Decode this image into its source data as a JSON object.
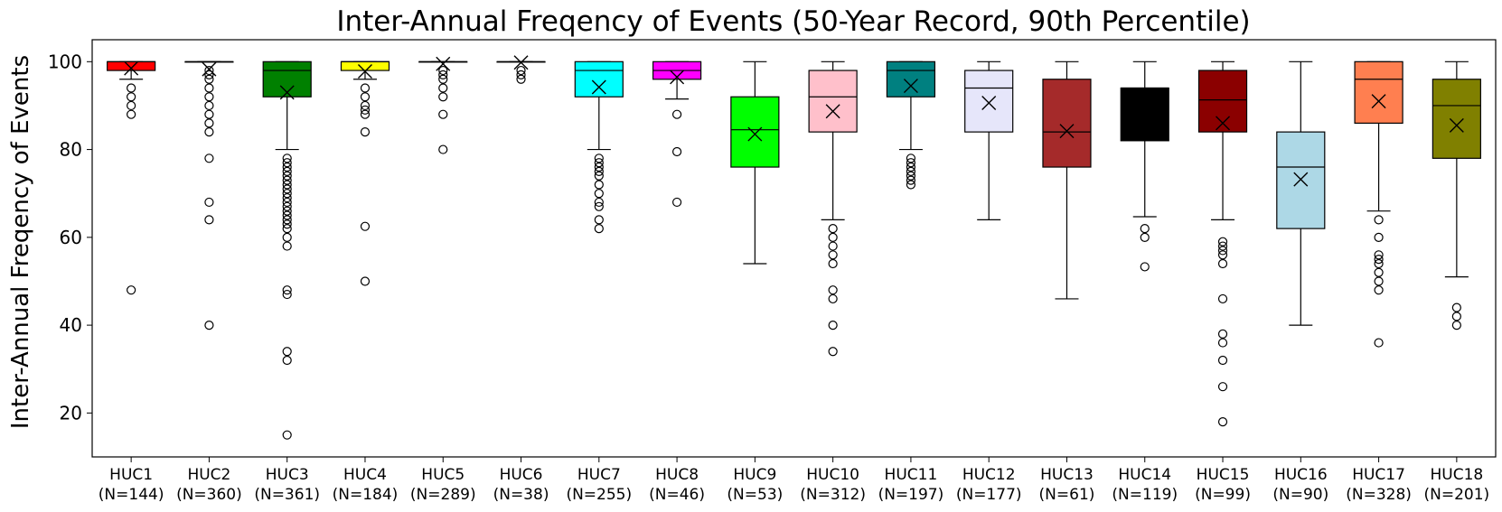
{
  "chart_data": {
    "type": "box",
    "title": "Inter-Annual Freqency of Events (50-Year Record, 90th Percentile)",
    "xlabel": "",
    "ylabel": "Inter-Annual Freqency of Events",
    "ylim": [
      10,
      105
    ],
    "yticks": [
      20,
      40,
      60,
      80,
      100
    ],
    "grid": false,
    "mean_marker": "x",
    "categories": [
      {
        "name": "HUC1",
        "n_label": "(N=144)",
        "color": "#ff0000",
        "q1": 98,
        "median": 100,
        "q3": 100,
        "whisker_low": 96,
        "whisker_high": 100,
        "mean": 98.5,
        "outliers": [
          94,
          92,
          90,
          88,
          48
        ]
      },
      {
        "name": "HUC2",
        "n_label": "(N=360)",
        "color": "#0000ff",
        "q1": 100,
        "median": 100,
        "q3": 100,
        "whisker_low": 100,
        "whisker_high": 100,
        "mean": 98.3,
        "outliers": [
          98,
          97,
          96,
          94,
          92,
          90,
          88,
          86,
          84,
          78,
          68,
          64,
          40
        ]
      },
      {
        "name": "HUC3",
        "n_label": "(N=361)",
        "color": "#008000",
        "q1": 92,
        "median": 98,
        "q3": 100,
        "whisker_low": 80,
        "whisker_high": 100,
        "mean": 93,
        "outliers": [
          78,
          77,
          76,
          75,
          74,
          73,
          72,
          71,
          70,
          69,
          68,
          67,
          66,
          65,
          64,
          63,
          62,
          60,
          58,
          48,
          47,
          34,
          32,
          15
        ]
      },
      {
        "name": "HUC4",
        "n_label": "(N=184)",
        "color": "#ffff00",
        "q1": 98,
        "median": 100,
        "q3": 100,
        "whisker_low": 96,
        "whisker_high": 100,
        "mean": 97.8,
        "outliers": [
          94,
          92,
          90,
          89,
          88,
          84,
          62.5,
          50
        ]
      },
      {
        "name": "HUC5",
        "n_label": "(N=289)",
        "color": "#ffffff",
        "q1": 100,
        "median": 100,
        "q3": 100,
        "whisker_low": 100,
        "whisker_high": 100,
        "mean": 99.5,
        "outliers": [
          98,
          97,
          96,
          94,
          92,
          88,
          80
        ]
      },
      {
        "name": "HUC6",
        "n_label": "(N=38)",
        "color": "#ffffff",
        "q1": 100,
        "median": 100,
        "q3": 100,
        "whisker_low": 100,
        "whisker_high": 100,
        "mean": 99.8,
        "outliers": [
          98,
          97,
          96
        ]
      },
      {
        "name": "HUC7",
        "n_label": "(N=255)",
        "color": "#00ffff",
        "q1": 92,
        "median": 98,
        "q3": 100,
        "whisker_low": 80,
        "whisker_high": 100,
        "mean": 94.2,
        "outliers": [
          78,
          77,
          76,
          75,
          74,
          72,
          70,
          68,
          67,
          64,
          62
        ]
      },
      {
        "name": "HUC8",
        "n_label": "(N=46)",
        "color": "#ff00ff",
        "q1": 96,
        "median": 98,
        "q3": 100,
        "whisker_low": 91.5,
        "whisker_high": 100,
        "mean": 96.5,
        "outliers": [
          88,
          79.5,
          68
        ]
      },
      {
        "name": "HUC9",
        "n_label": "(N=53)",
        "color": "#00ff00",
        "q1": 76,
        "median": 84.5,
        "q3": 92,
        "whisker_low": 54,
        "whisker_high": 100,
        "mean": 83.5,
        "outliers": []
      },
      {
        "name": "HUC10",
        "n_label": "(N=312)",
        "color": "#ffc0cb",
        "q1": 84,
        "median": 92,
        "q3": 98,
        "whisker_low": 64,
        "whisker_high": 100,
        "mean": 88.7,
        "outliers": [
          62,
          60,
          58,
          56,
          54,
          48,
          46,
          40,
          34
        ]
      },
      {
        "name": "HUC11",
        "n_label": "(N=197)",
        "color": "#008080",
        "q1": 92,
        "median": 98,
        "q3": 100,
        "whisker_low": 80,
        "whisker_high": 100,
        "mean": 94.5,
        "outliers": [
          78,
          77,
          76,
          75,
          74,
          73,
          72
        ]
      },
      {
        "name": "HUC12",
        "n_label": "(N=177)",
        "color": "#e6e6fa",
        "q1": 84,
        "median": 94,
        "q3": 98,
        "whisker_low": 64,
        "whisker_high": 100,
        "mean": 90.6,
        "outliers": []
      },
      {
        "name": "HUC13",
        "n_label": "(N=61)",
        "color": "#a52a2a",
        "q1": 76,
        "median": 84,
        "q3": 96,
        "whisker_low": 46,
        "whisker_high": 100,
        "mean": 84.2,
        "outliers": []
      },
      {
        "name": "HUC14",
        "n_label": "(N=119)",
        "color": "#000000",
        "q1": 82,
        "median": 94,
        "q3": 94,
        "whisker_low": 64.7,
        "whisker_high": 100,
        "mean": 87,
        "outliers": [
          62,
          60,
          53.3
        ]
      },
      {
        "name": "HUC15",
        "n_label": "(N=99)",
        "color": "#8b0000",
        "q1": 84,
        "median": 91.3,
        "q3": 98,
        "whisker_low": 64,
        "whisker_high": 100,
        "mean": 86,
        "outliers": [
          59,
          58,
          57,
          56,
          54,
          46,
          38,
          36,
          32,
          26,
          18
        ]
      },
      {
        "name": "HUC16",
        "n_label": "(N=90)",
        "color": "#add8e6",
        "q1": 62,
        "median": 76,
        "q3": 84,
        "whisker_low": 40,
        "whisker_high": 100,
        "mean": 73.2,
        "outliers": []
      },
      {
        "name": "HUC17",
        "n_label": "(N=328)",
        "color": "#ff7f50",
        "q1": 86,
        "median": 96,
        "q3": 100,
        "whisker_low": 66,
        "whisker_high": 100,
        "mean": 91,
        "outliers": [
          64,
          60,
          56,
          55,
          54,
          52,
          50,
          48,
          36
        ]
      },
      {
        "name": "HUC18",
        "n_label": "(N=201)",
        "color": "#808000",
        "q1": 78,
        "median": 90,
        "q3": 96,
        "whisker_low": 51,
        "whisker_high": 100,
        "mean": 85.5,
        "outliers": [
          44,
          42,
          40
        ]
      }
    ]
  }
}
